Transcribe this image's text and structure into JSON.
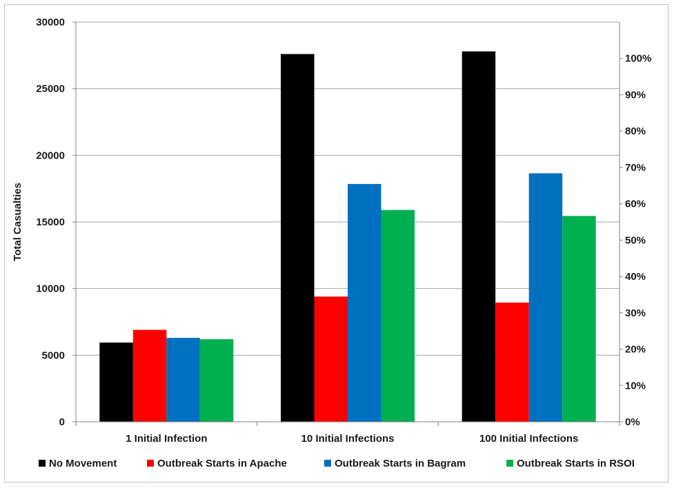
{
  "chart_data": {
    "type": "bar",
    "title": "",
    "xlabel": "",
    "ylabel": "Total Casualties",
    "ylim": [
      0,
      30000
    ],
    "y_ticks": [
      "0",
      "5000",
      "10000",
      "15000",
      "20000",
      "25000",
      "30000"
    ],
    "y_tick_values": [
      0,
      5000,
      10000,
      15000,
      20000,
      25000,
      30000
    ],
    "y2lim": [
      0,
      1.1
    ],
    "y2_ticks": [
      "0%",
      "10%",
      "20%",
      "30%",
      "40%",
      "50%",
      "60%",
      "70%",
      "80%",
      "90%",
      "100%"
    ],
    "y2_tick_values": [
      0,
      0.1,
      0.2,
      0.3,
      0.4,
      0.5,
      0.6,
      0.7,
      0.8,
      0.9,
      1.0
    ],
    "grid": true,
    "legend_position": "bottom",
    "categories": [
      "1 Initial Infection",
      "10 Initial Infections",
      "100 Initial Infections"
    ],
    "series": [
      {
        "name": "No Movement",
        "color": "#000000",
        "values": [
          5950,
          27600,
          27800
        ]
      },
      {
        "name": "Outbreak Starts in Apache",
        "color": "#ff0000",
        "values": [
          6900,
          9400,
          8950
        ]
      },
      {
        "name": "Outbreak Starts in Bagram",
        "color": "#0070c0",
        "values": [
          6300,
          17850,
          18650
        ]
      },
      {
        "name": "Outbreak Starts in RSOI",
        "color": "#00b050",
        "values": [
          6200,
          15900,
          15450
        ]
      }
    ]
  }
}
